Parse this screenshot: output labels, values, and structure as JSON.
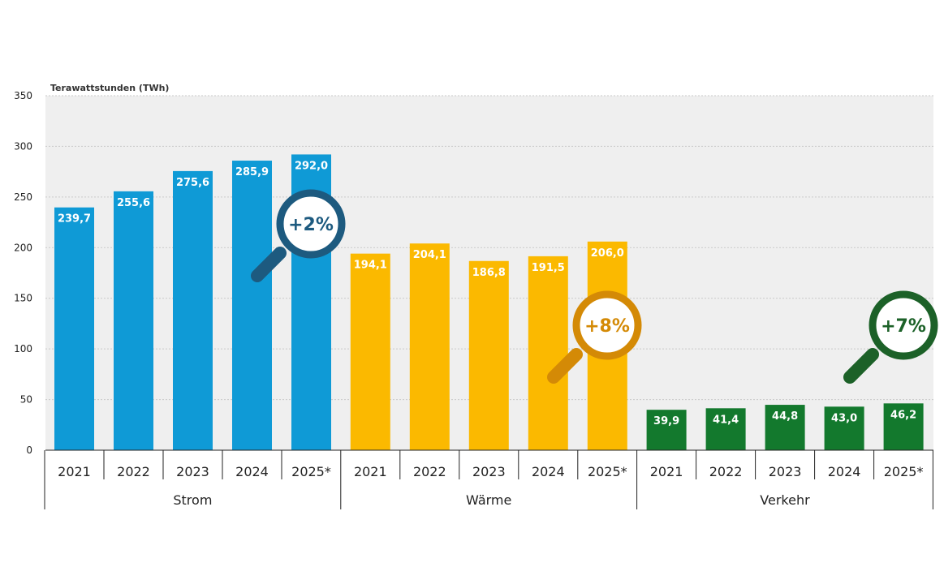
{
  "chart_data": {
    "type": "bar",
    "ylabel": "Terawattstunden (TWh)",
    "ylim": [
      0,
      350
    ],
    "yticks": [
      0,
      50,
      100,
      150,
      200,
      250,
      300,
      350
    ],
    "grid": true,
    "categories": [
      "2021",
      "2022",
      "2023",
      "2024",
      "2025*"
    ],
    "groups": [
      {
        "name": "Strom",
        "color": "#0f9ad6",
        "values": [
          239.7,
          255.6,
          275.6,
          285.9,
          292.0
        ],
        "labels": [
          "239,7",
          "255,6",
          "275,6",
          "285,9",
          "292,0"
        ],
        "change": "+2%",
        "badge_color": "#1d5a7f"
      },
      {
        "name": "Wärme",
        "color": "#fbb900",
        "values": [
          194.1,
          204.1,
          186.8,
          191.5,
          206.0
        ],
        "labels": [
          "194,1",
          "204,1",
          "186,8",
          "191,5",
          "206,0"
        ],
        "change": "+8%",
        "badge_color": "#d48a06"
      },
      {
        "name": "Verkehr",
        "color": "#13792d",
        "values": [
          39.9,
          41.4,
          44.8,
          43.0,
          46.2
        ],
        "labels": [
          "39,9",
          "41,4",
          "44,8",
          "43,0",
          "46,2"
        ],
        "change": "+7%",
        "badge_color": "#1c6128"
      }
    ]
  }
}
